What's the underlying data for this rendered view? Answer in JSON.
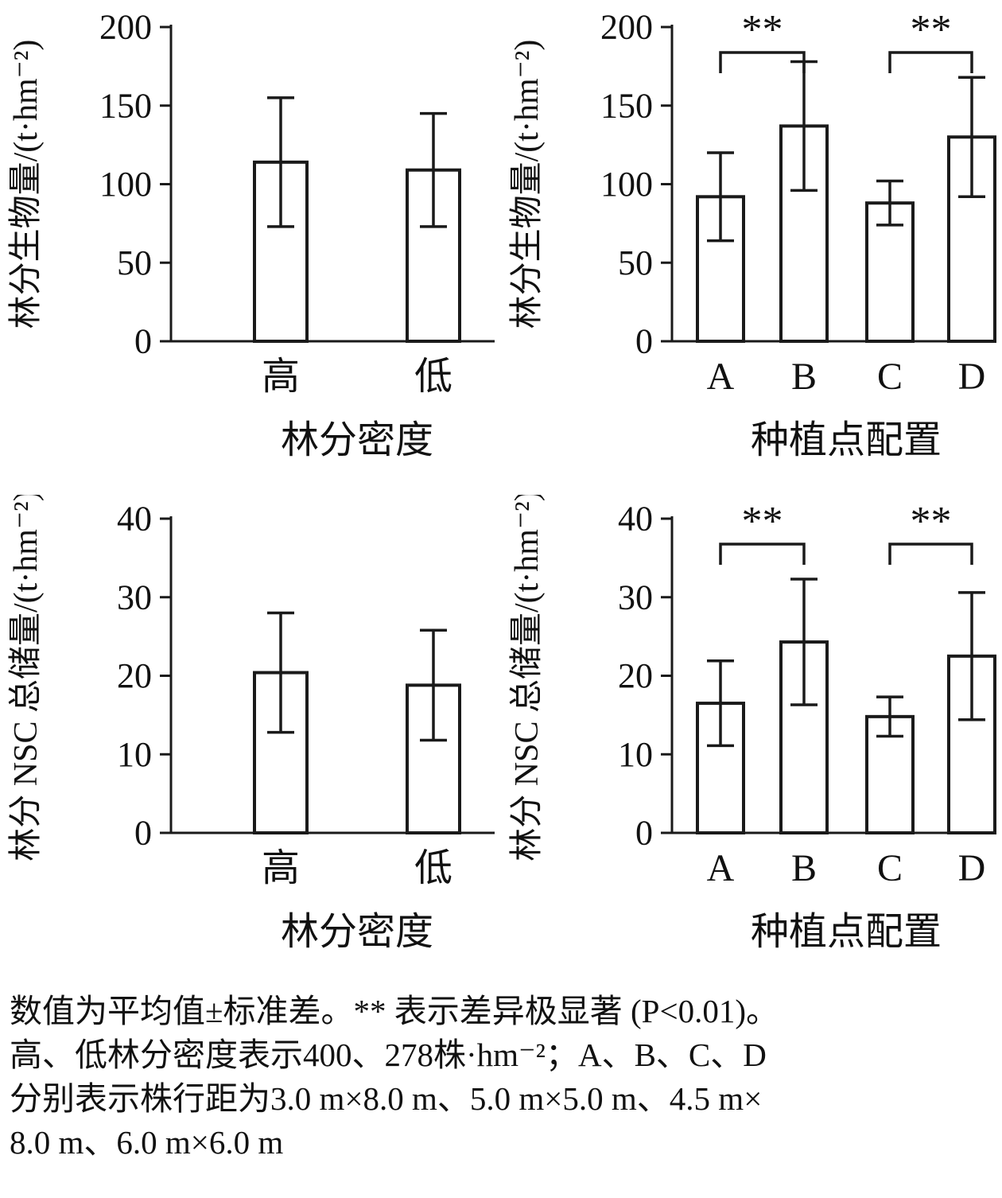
{
  "colors": {
    "line": "#1a1a1a",
    "bar_fill": "#ffffff",
    "background": "#ffffff"
  },
  "caption": {
    "lines": [
      "数值为平均值±标准差。** 表示差异极显著 (P<0.01)。",
      "高、低林分密度表示400、278株·hm⁻²；A、B、C、D",
      "分别表示株行距为3.0 m×8.0 m、5.0 m×5.0 m、4.5 m×",
      "8.0 m、6.0 m×6.0 m"
    ]
  },
  "chart_data": [
    {
      "id": "biomass-by-density",
      "type": "bar",
      "title": "",
      "ylabel": "林分生物量/(t·hm⁻²)",
      "xlabel": "林分密度",
      "categories": [
        "高",
        "低"
      ],
      "values": [
        114,
        109
      ],
      "errors": [
        41,
        36
      ],
      "ylim": [
        0,
        200
      ],
      "yticks": [
        0,
        50,
        100,
        150,
        200
      ],
      "brackets": []
    },
    {
      "id": "biomass-by-planting-config",
      "type": "bar",
      "title": "",
      "ylabel": "林分生物量/(t·hm⁻²)",
      "xlabel": "种植点配置",
      "categories": [
        "A",
        "B",
        "C",
        "D"
      ],
      "values": [
        92,
        137,
        88,
        130
      ],
      "errors": [
        28,
        41,
        14,
        38
      ],
      "ylim": [
        0,
        200
      ],
      "yticks": [
        0,
        50,
        100,
        150,
        200
      ],
      "brackets": [
        {
          "from": 0,
          "to": 1,
          "label": "**"
        },
        {
          "from": 2,
          "to": 3,
          "label": "**"
        }
      ]
    },
    {
      "id": "nsc-storage-by-density",
      "type": "bar",
      "title": "",
      "ylabel": "林分 NSC 总储量/(t·hm⁻²)",
      "xlabel": "林分密度",
      "categories": [
        "高",
        "低"
      ],
      "values": [
        20.4,
        18.8
      ],
      "errors": [
        7.6,
        7.0
      ],
      "ylim": [
        0,
        40
      ],
      "yticks": [
        0,
        10,
        20,
        30,
        40
      ],
      "brackets": []
    },
    {
      "id": "nsc-storage-by-planting-config",
      "type": "bar",
      "title": "",
      "ylabel": "林分 NSC 总储量/(t·hm⁻²)",
      "xlabel": "种植点配置",
      "categories": [
        "A",
        "B",
        "C",
        "D"
      ],
      "values": [
        16.5,
        24.3,
        14.8,
        22.5
      ],
      "errors": [
        5.4,
        8.0,
        2.5,
        8.1
      ],
      "ylim": [
        0,
        40
      ],
      "yticks": [
        0,
        10,
        20,
        30,
        40
      ],
      "brackets": [
        {
          "from": 0,
          "to": 1,
          "label": "**"
        },
        {
          "from": 2,
          "to": 3,
          "label": "**"
        }
      ]
    }
  ]
}
